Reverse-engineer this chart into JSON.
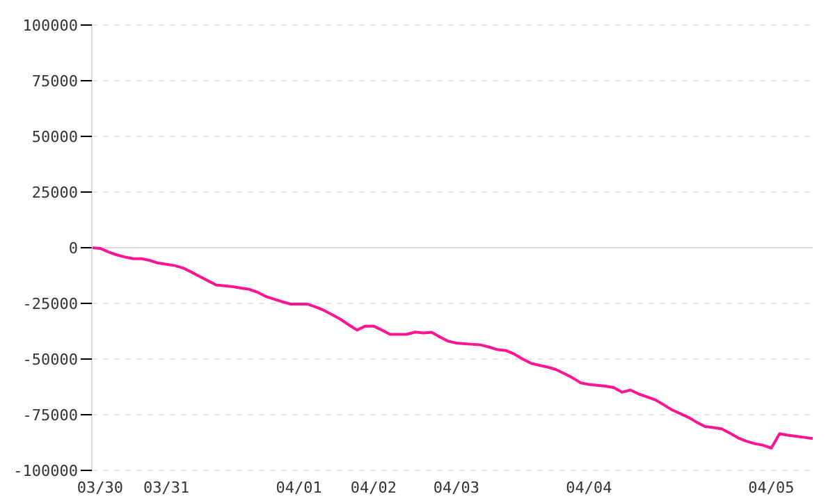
{
  "chart_data": {
    "type": "line",
    "color": "#ff1493",
    "marker": "none",
    "line_style": "solid",
    "grid": "y",
    "categories": [
      null,
      "03/30",
      null,
      null,
      null,
      null,
      null,
      null,
      null,
      "03/31",
      null,
      null,
      null,
      null,
      null,
      null,
      null,
      null,
      null,
      null,
      null,
      null,
      null,
      null,
      null,
      "04/01",
      null,
      null,
      null,
      null,
      null,
      null,
      null,
      null,
      "04/02",
      null,
      null,
      null,
      null,
      null,
      null,
      null,
      null,
      null,
      "04/03",
      null,
      null,
      null,
      null,
      null,
      null,
      null,
      null,
      null,
      null,
      null,
      null,
      null,
      null,
      null,
      "04/04",
      null,
      null,
      null,
      null,
      null,
      null,
      null,
      null,
      null,
      null,
      null,
      null,
      null,
      null,
      null,
      null,
      null,
      null,
      null,
      null,
      null,
      "04/05",
      null,
      null,
      null,
      null,
      null
    ],
    "values": [
      0,
      -300,
      -1900,
      -3200,
      -4200,
      -4900,
      -4900,
      -5700,
      -6900,
      -7400,
      -8000,
      -9100,
      -10900,
      -12900,
      -14800,
      -16700,
      -17100,
      -17500,
      -18100,
      -18700,
      -20000,
      -21900,
      -23100,
      -24300,
      -25300,
      -25300,
      -25300,
      -26600,
      -28100,
      -30100,
      -32100,
      -34600,
      -37000,
      -35200,
      -35200,
      -37000,
      -38900,
      -38900,
      -38900,
      -37900,
      -38300,
      -38000,
      -40100,
      -42000,
      -42800,
      -43100,
      -43400,
      -43700,
      -44700,
      -45800,
      -46200,
      -47800,
      -50000,
      -51900,
      -52800,
      -53600,
      -54700,
      -56500,
      -58400,
      -60700,
      -61400,
      -61800,
      -62200,
      -62800,
      -64900,
      -63900,
      -65700,
      -67000,
      -68300,
      -70500,
      -72800,
      -74500,
      -76200,
      -78400,
      -80300,
      -80800,
      -81300,
      -83300,
      -85400,
      -86900,
      -88000,
      -88700,
      -90000,
      -83500,
      -84200,
      -84700,
      -85200,
      -85700
    ],
    "ylim": [
      -100000,
      100000
    ],
    "yticks": [
      -100000,
      -75000,
      -50000,
      -25000,
      0,
      25000,
      50000,
      75000,
      100000
    ],
    "ref_lines": [
      {
        "axis": "y",
        "value": 0,
        "color": "#dddddd",
        "line_style": "solid"
      }
    ]
  }
}
